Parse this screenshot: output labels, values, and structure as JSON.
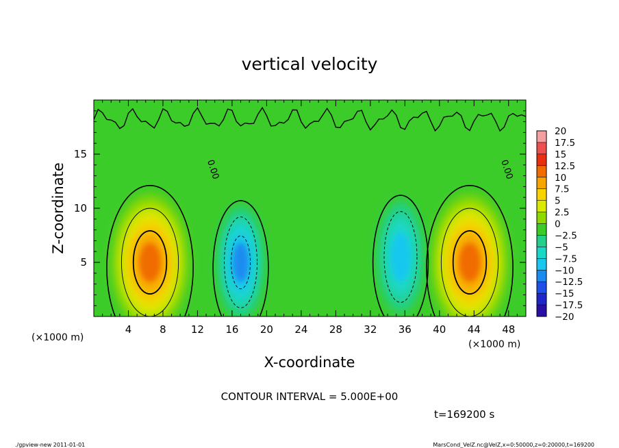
{
  "chart_data": {
    "type": "heatmap",
    "title": "vertical velocity",
    "xlabel": "X-coordinate",
    "ylabel": "Z-coordinate",
    "x_unit_label": "(×1000 m)",
    "y_unit_label": "(×1000 m)",
    "xlim": [
      0,
      50
    ],
    "ylim": [
      0,
      20
    ],
    "x_ticks": [
      4,
      8,
      12,
      16,
      20,
      24,
      28,
      32,
      36,
      40,
      44,
      48
    ],
    "y_ticks": [
      5,
      10,
      15
    ],
    "colorbar": {
      "levels": [
        20,
        17.5,
        15,
        12.5,
        10,
        7.5,
        5,
        2.5,
        0,
        -2.5,
        -5,
        -7.5,
        -10,
        -12.5,
        -15,
        -17.5,
        -20
      ],
      "colors": [
        "#f4a0a0",
        "#ee5050",
        "#e82f0f",
        "#f06c00",
        "#f7a500",
        "#f7d400",
        "#d7ea00",
        "#8fd800",
        "#3ccc2a",
        "#22d08a",
        "#1ad8c8",
        "#18c8ee",
        "#1a8cf0",
        "#1f4fe8",
        "#1f25c8",
        "#2a0fa4",
        "#5a1a9e"
      ]
    },
    "features": [
      {
        "kind": "updraft",
        "x": 6.5,
        "z": 5,
        "peak": 12.5
      },
      {
        "kind": "downdraft",
        "x": 17,
        "z": 5,
        "peak": -10
      },
      {
        "kind": "downdraft",
        "x": 35.5,
        "z": 5.5,
        "peak": -7.5
      },
      {
        "kind": "updraft",
        "x": 43.5,
        "z": 5,
        "peak": 12.5
      }
    ],
    "contour_labels": [
      {
        "text": "0.00",
        "x": 13.5,
        "z": 13.5
      },
      {
        "text": "0.00",
        "x": 47.5,
        "z": 13.5
      }
    ],
    "contour_interval_text": "CONTOUR INTERVAL = 5.000E+00",
    "time_text": "t=169200 s"
  },
  "footer": {
    "left": "./gpview-new  2011-01-01",
    "right": "MarsCond_VelZ.nc@VelZ,x=0:50000,z=0:20000,t=169200"
  }
}
